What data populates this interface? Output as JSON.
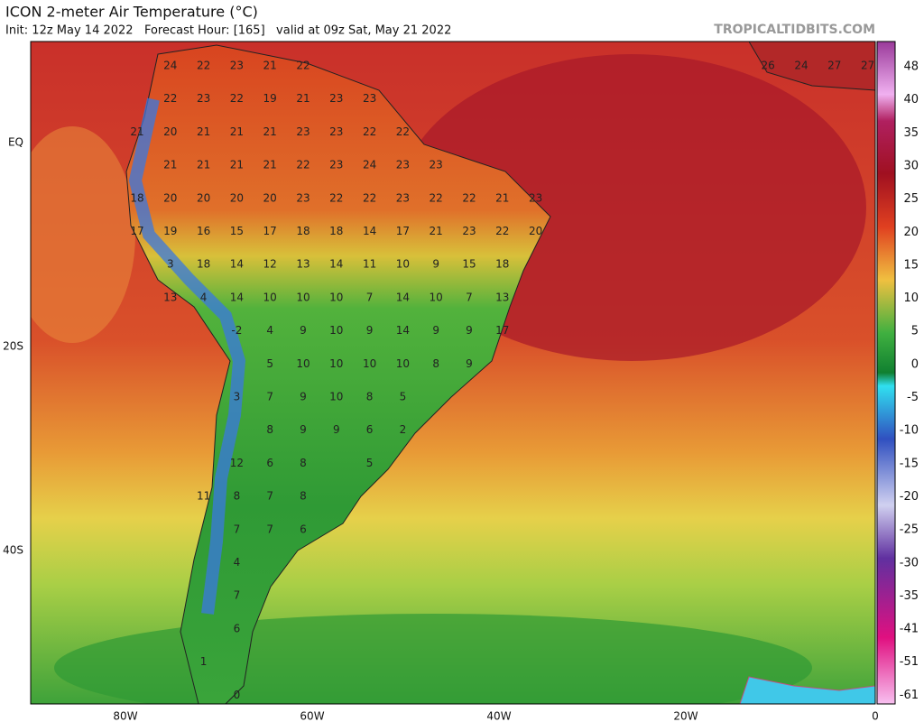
{
  "header": {
    "title": "ICON 2-meter Air Temperature (°C)",
    "subtitle": "Init: 12z May 14 2022   Forecast Hour: [165]   valid at 09z Sat, May 21 2022",
    "source": "TROPICALTIDBITS.COM"
  },
  "axes": {
    "lat_labels": [
      "EQ",
      "20S",
      "40S"
    ],
    "lon_labels": [
      "80W",
      "60W",
      "40W",
      "20W",
      "0"
    ]
  },
  "colorbar": {
    "labels": [
      48,
      40,
      35,
      30,
      25,
      20,
      15,
      10,
      5,
      0,
      -5,
      -10,
      -15,
      -20,
      -25,
      -30,
      -35,
      -41,
      -51,
      -61
    ]
  },
  "map_labels": {
    "rows": [
      [
        24,
        22,
        23,
        21,
        22,
        26,
        24,
        27,
        27
      ],
      [
        22,
        23,
        22,
        19,
        21,
        23,
        23
      ],
      [
        21,
        20,
        21,
        21,
        21,
        23,
        23,
        22,
        22
      ],
      [
        21,
        21,
        21,
        21,
        22,
        23,
        24,
        23,
        23
      ],
      [
        18,
        20,
        20,
        20,
        20,
        23,
        22,
        22,
        23,
        22,
        22,
        21,
        23
      ],
      [
        17,
        19,
        16,
        15,
        17,
        18,
        18,
        14,
        17,
        21,
        23,
        22,
        20
      ],
      [
        3,
        18,
        14,
        12,
        13,
        14,
        11,
        10,
        9,
        15,
        18
      ],
      [
        13,
        4,
        14,
        10,
        10,
        10,
        7,
        14,
        10,
        7,
        13
      ],
      [
        -2,
        4,
        9,
        10,
        9,
        14,
        9,
        9,
        17
      ],
      [
        5,
        10,
        10,
        10,
        10,
        8,
        9
      ],
      [
        3,
        7,
        9,
        10,
        8,
        5
      ],
      [
        8,
        9,
        9,
        6,
        2
      ],
      [
        12,
        6,
        8,
        5
      ],
      [
        11,
        8,
        7,
        8
      ],
      [
        7,
        7,
        6
      ],
      [
        4
      ],
      [
        7
      ],
      [
        6
      ],
      [
        1
      ],
      [
        0
      ]
    ]
  }
}
